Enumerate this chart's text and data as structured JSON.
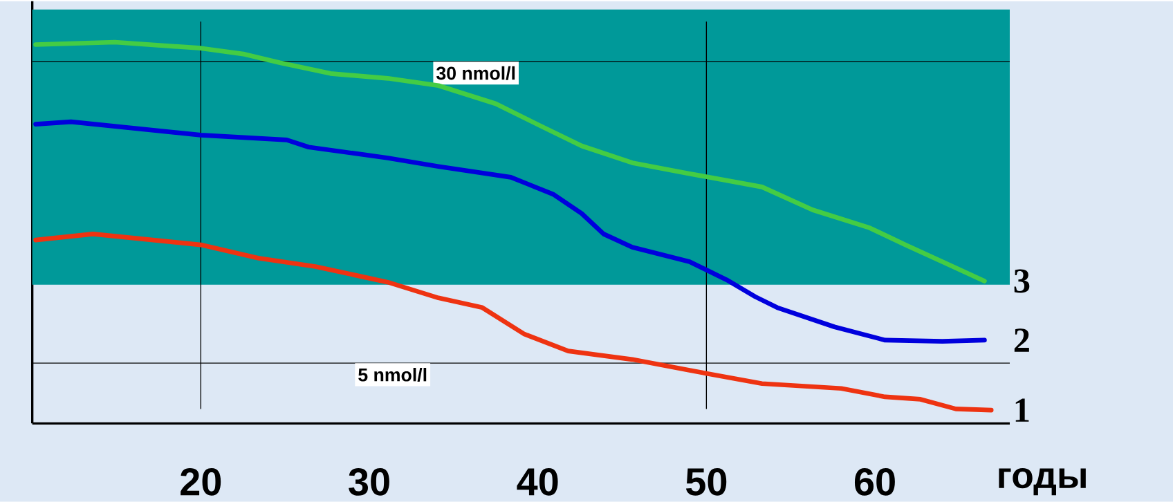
{
  "chart_data": {
    "type": "line",
    "xlabel": "годы",
    "x": [
      10.2,
      14.9,
      20.0,
      22.6,
      24.7,
      27.7,
      31.1,
      34.1,
      37.5,
      40.1,
      42.6,
      45.6,
      49.0,
      53.3,
      56.3,
      59.7,
      61.8,
      64.0,
      66.5
    ],
    "xlim": [
      10,
      68
    ],
    "ylim": [
      0,
      35
    ],
    "xticks": [
      20,
      30,
      40,
      50,
      60
    ],
    "tick_labels": "x",
    "legend": false,
    "marker": "none",
    "line_style": "solid",
    "series": [
      {
        "name": "3",
        "color": "#44cc44",
        "values": [
          31.4,
          31.6,
          31.1,
          30.6,
          29.9,
          29.0,
          28.6,
          28.0,
          26.5,
          24.7,
          23.0,
          21.6,
          20.7,
          19.6,
          17.7,
          16.2,
          14.8,
          13.4,
          11.8
        ]
      },
      {
        "name": "2",
        "color": "#0000dd",
        "x": [
          10.2,
          12.3,
          20.0,
          25.1,
          26.4,
          31.1,
          34.1,
          38.4,
          40.9,
          42.6,
          43.9,
          45.6,
          49.0,
          51.2,
          52.9,
          54.2,
          57.6,
          60.6,
          64.0,
          66.5
        ],
        "values": [
          24.8,
          25.0,
          23.9,
          23.5,
          22.9,
          22.0,
          21.3,
          20.4,
          19.0,
          17.4,
          15.7,
          14.6,
          13.4,
          11.9,
          10.5,
          9.6,
          8.0,
          6.9,
          6.8,
          6.9
        ]
      },
      {
        "name": "1",
        "color": "#ee3311",
        "x": [
          10.2,
          13.6,
          20.0,
          23.4,
          26.8,
          31.1,
          34.1,
          36.7,
          39.2,
          41.8,
          45.6,
          49.0,
          53.3,
          58.0,
          60.6,
          62.7,
          64.8,
          66.9
        ],
        "values": [
          15.2,
          15.7,
          14.8,
          13.7,
          13.0,
          11.7,
          10.4,
          9.6,
          7.4,
          6.0,
          5.3,
          4.4,
          3.3,
          2.9,
          2.2,
          2.0,
          1.2,
          1.1
        ]
      }
    ],
    "bands": [
      {
        "axis": "y",
        "from": 11.5,
        "to": 34.3,
        "color": "#009999"
      }
    ],
    "ref_lines": [
      {
        "axis": "y",
        "value": 30,
        "label": "30 nmol/l"
      },
      {
        "axis": "y",
        "value": 5,
        "label": "5 nmol/l"
      },
      {
        "axis": "x",
        "value": 20
      },
      {
        "axis": "x",
        "value": 50
      }
    ]
  }
}
